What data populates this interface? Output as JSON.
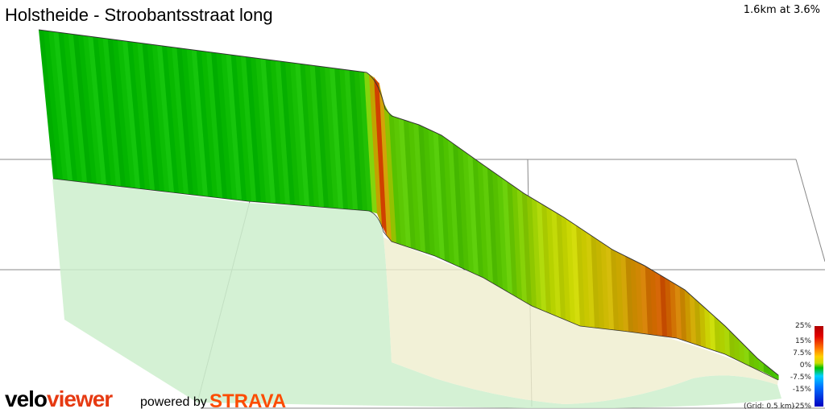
{
  "header": {
    "title": "Holstheide - Stroobantsstraat long",
    "stats": "1.6km at 3.6%"
  },
  "legend": {
    "labels": [
      "25%",
      "15%",
      "7.5%",
      "0%",
      "-7.5%",
      "-15%",
      "-25%"
    ],
    "grid_note": "(Grid: 0.5 km)"
  },
  "branding": {
    "logo_part1": "velo",
    "logo_part2": "viewer",
    "powered_by": "powered by",
    "strava": "STRAVA"
  },
  "chart_data": {
    "type": "area",
    "title": "Holstheide - Stroobantsstraat long",
    "subtitle": "1.6km at 3.6%",
    "xlabel": "",
    "ylabel": "",
    "grid_spacing_km": 0.5,
    "x": [
      0,
      0.4,
      0.7,
      0.73,
      0.76,
      0.85,
      1.0,
      1.1,
      1.25,
      1.35,
      1.45,
      1.55,
      1.6
    ],
    "gradient_pct": [
      1.2,
      1.3,
      2.0,
      11.0,
      4.0,
      3.5,
      4.0,
      6.5,
      8.0,
      10.0,
      7.0,
      4.5,
      3.0
    ],
    "legend_scale": [
      "25%",
      "15%",
      "7.5%",
      "0%",
      "-7.5%",
      "-15%",
      "-25%"
    ],
    "colors": {
      "low": "#00b800",
      "mid": "#c8d400",
      "high": "#d04000",
      "shadow": "#cdeecd"
    }
  }
}
